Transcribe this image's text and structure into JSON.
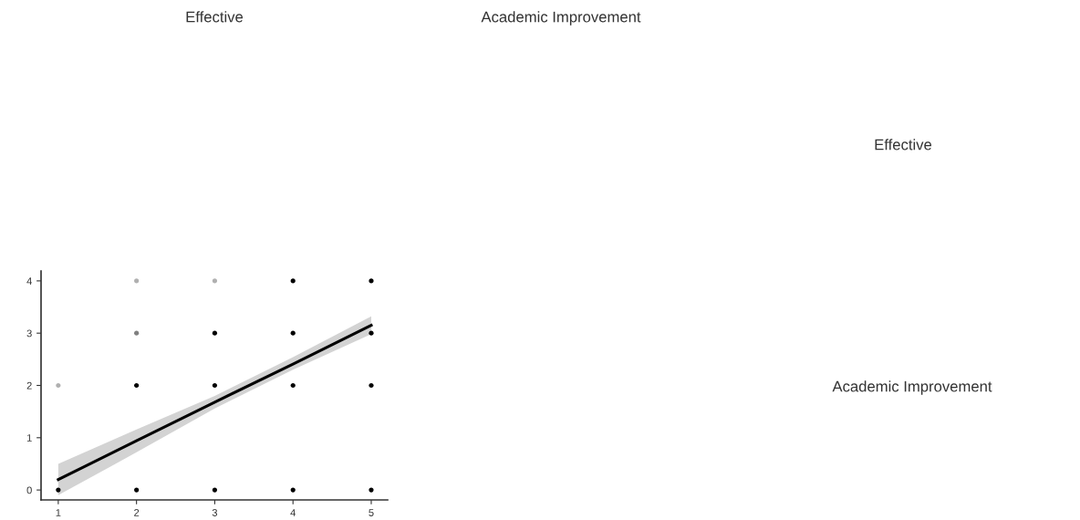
{
  "chart_data": {
    "type": "scatter",
    "annotations": [
      "Effective",
      "Academic Improvement",
      "Effective",
      "Academic Improvement"
    ],
    "xlim": [
      0.78,
      5.21
    ],
    "ylim": [
      -0.19,
      4.19
    ],
    "xticks": [
      1,
      2,
      3,
      4,
      5
    ],
    "yticks": [
      0,
      1,
      2,
      3,
      4
    ],
    "grid": false,
    "series": [
      {
        "marker": "circle",
        "x": [
          1,
          1,
          2,
          2,
          2,
          2,
          3,
          3,
          3,
          3,
          4,
          4,
          4,
          4,
          5,
          5,
          5,
          5
        ],
        "values": [
          0,
          2,
          0,
          2,
          3,
          4,
          0,
          2,
          3,
          4,
          0,
          2,
          3,
          4,
          0,
          2,
          3,
          4
        ],
        "colors": [
          "#000000",
          "#b0b0b0",
          "#000000",
          "#000000",
          "#808080",
          "#b0b0b0",
          "#000000",
          "#000000",
          "#000000",
          "#b0b0b0",
          "#000000",
          "#000000",
          "#000000",
          "#000000",
          "#000000",
          "#000000",
          "#000000",
          "#000000"
        ]
      },
      {
        "type": "line",
        "color": "#000000",
        "x": [
          1,
          2,
          3,
          4,
          5
        ],
        "values": [
          0.2,
          0.94,
          1.68,
          2.41,
          3.15
        ],
        "lower": [
          -0.1,
          0.72,
          1.56,
          2.3,
          2.98
        ],
        "upper": [
          0.5,
          1.16,
          1.8,
          2.54,
          3.32
        ]
      }
    ]
  }
}
